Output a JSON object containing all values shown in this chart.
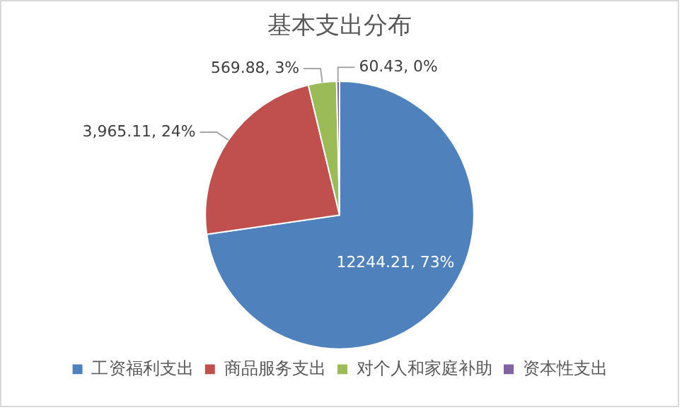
{
  "chart_data": {
    "type": "pie",
    "title": "基本支出分布",
    "categories": [
      "工资福利支出",
      "商品服务支出",
      "对个人和家庭补助",
      "资本性支出"
    ],
    "values": [
      12244.21,
      3965.11,
      569.88,
      60.43
    ],
    "colors": [
      "#4f81bd",
      "#c0504d",
      "#9bbb59",
      "#8064a2"
    ],
    "value_labels": [
      "12244.21, 73%",
      "3,965.11, 24%",
      "569.88, 3%",
      "60.43, 0%"
    ],
    "legend": "bottom"
  }
}
